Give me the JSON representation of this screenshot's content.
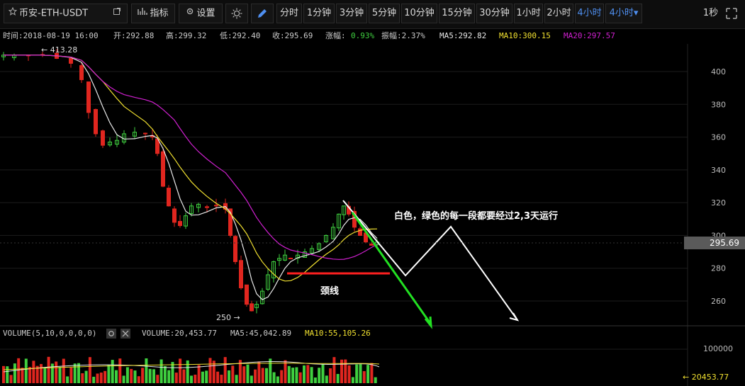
{
  "toolbar": {
    "symbol": "币安-ETH-USDT",
    "indicator_label": "指标",
    "settings_label": "设置",
    "periods": [
      "分时",
      "1分钟",
      "3分钟",
      "5分钟",
      "10分钟",
      "15分钟",
      "30分钟",
      "1小时",
      "2小时",
      "4小时",
      "4小时▾"
    ],
    "active_period_index": 9,
    "right_label": "1秒"
  },
  "info": {
    "time": "时间:2018-08-19 16:00",
    "open": "开:292.88",
    "high": "高:299.32",
    "low": "低:292.40",
    "close": "收:295.69",
    "change_label": "涨幅:",
    "change_value": "0.93%",
    "amplitude": "振幅:2.37%",
    "ma5": "MA5:292.82",
    "ma10": "MA10:300.15",
    "ma20": "MA20:297.57"
  },
  "price_axis": [
    "400",
    "380",
    "360",
    "340",
    "320",
    "300",
    "280",
    "260"
  ],
  "current_price": "295.69",
  "annotations": {
    "high_marker": "← 413.28",
    "low_marker": "250 →",
    "neckline": "颈线",
    "note": "白色，绿色的每一段都要经过2,3天运行"
  },
  "volume": {
    "params": "VOLUME(5,10,0,0,0,0)",
    "value": "VOLUME:20,453.77",
    "ma5": "MA5:45,042.89",
    "ma10": "MA10:55,105.26",
    "axis_label": "100000",
    "current": "← 20453.77"
  },
  "colors": {
    "up": "#3fcf3f",
    "down": "#e0261f",
    "ma5": "#e8e8e8",
    "ma10": "#f0e030",
    "ma20": "#d020d0",
    "accent": "#4f8ff0"
  }
}
